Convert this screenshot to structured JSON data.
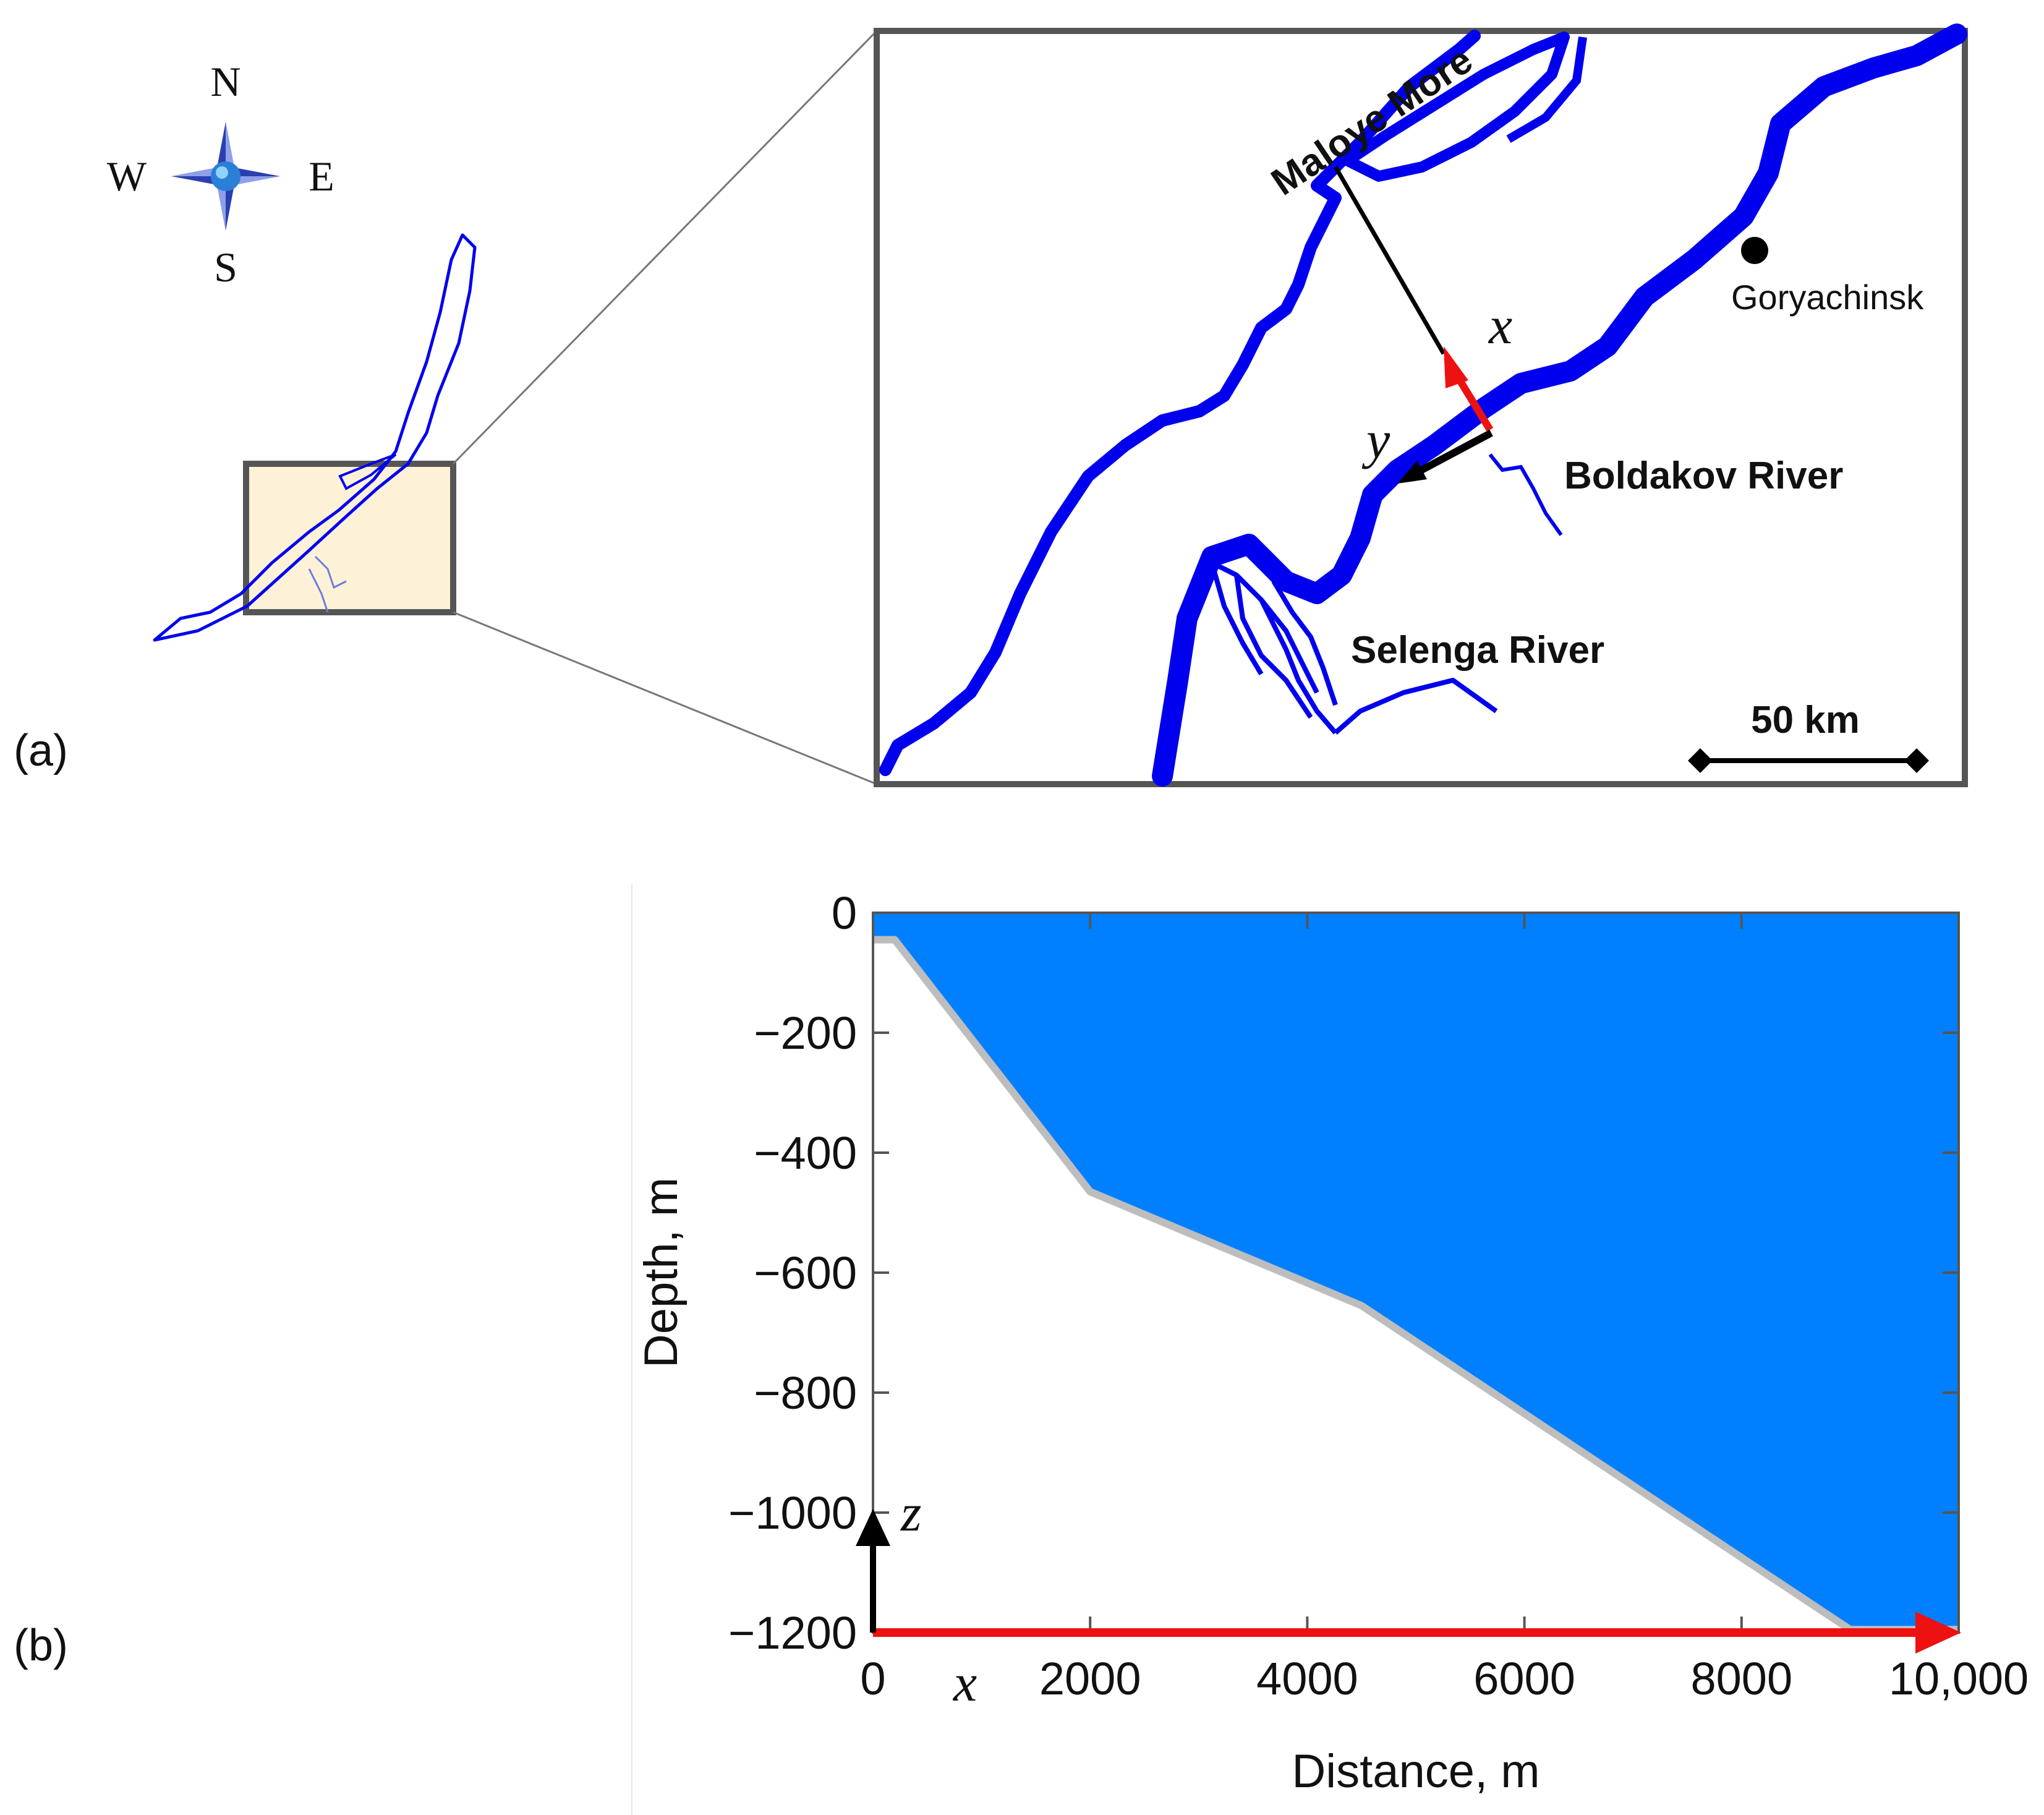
{
  "panel_a": {
    "label": "(a)",
    "compass": {
      "north": "N",
      "south": "S",
      "east": "E",
      "west": "W",
      "icon": "compass-rose-icon"
    },
    "inset": {
      "labels": {
        "maloye_more": "Maloye More",
        "goryachinsk": "Goryachinsk",
        "boldakov": "Boldakov River",
        "selenga": "Selenga River"
      },
      "axes": {
        "x": "x",
        "y": "y"
      },
      "scale_bar": "50 km"
    },
    "colors": {
      "water": "#0000ee",
      "highlight_fill": "#fdf1d8",
      "frame": "#555555",
      "axis_x": "#ee1111",
      "axis_y": "#000000"
    }
  },
  "panel_b": {
    "label": "(b)",
    "colors": {
      "water": "#0080ff",
      "bottom": "#bdbdbd",
      "x_axis_arrow": "#ee1111",
      "z_axis_arrow": "#000000"
    },
    "axis_vars": {
      "x": "x",
      "z": "z"
    },
    "chart_data": {
      "type": "area",
      "title": "",
      "xlabel": "Distance, m",
      "ylabel": "Depth, m",
      "xlim": [
        0,
        10000
      ],
      "ylim": [
        -1200,
        0
      ],
      "xticks": [
        0,
        2000,
        4000,
        6000,
        8000,
        10000
      ],
      "xtick_labels": [
        "0",
        "2000",
        "4000",
        "6000",
        "8000",
        "10,000"
      ],
      "yticks": [
        0,
        -200,
        -400,
        -600,
        -800,
        -1000,
        -1200
      ],
      "ytick_labels": [
        "0",
        "−200",
        "−400",
        "−600",
        "−800",
        "−1000",
        "−1200"
      ],
      "grid": false,
      "series": [
        {
          "x": [
            0,
            200,
            2000,
            4500,
            9000,
            10000
          ],
          "y": [
            -45,
            -45,
            -465,
            -655,
            -1195,
            -1195
          ]
        }
      ]
    }
  }
}
